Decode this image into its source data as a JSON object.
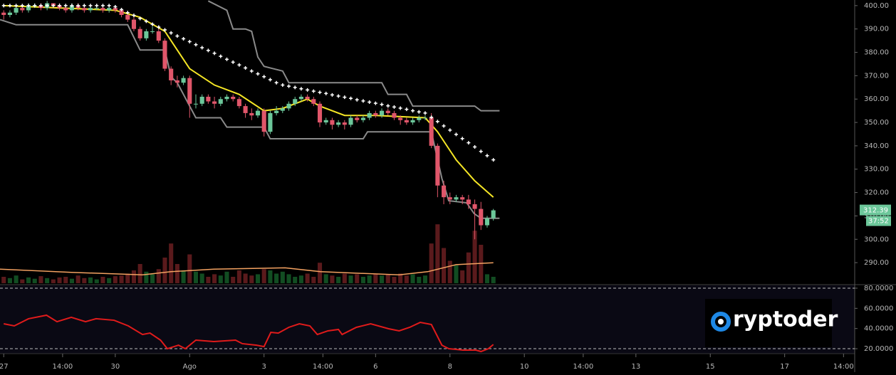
{
  "chart_data": [
    {
      "type": "candlestick",
      "x": [
        0,
        1,
        2,
        3,
        4,
        5,
        6,
        7,
        8,
        9,
        10,
        11,
        12,
        13,
        14,
        15,
        16,
        17,
        18,
        19,
        20,
        21,
        22,
        23,
        24,
        25,
        26,
        27,
        28,
        29,
        30,
        31,
        32,
        33,
        34,
        35,
        36,
        37,
        38,
        39,
        40,
        41,
        42,
        43,
        44,
        45,
        46,
        47,
        48,
        49,
        50,
        51,
        52,
        53,
        54,
        55,
        56,
        57,
        58,
        59,
        60,
        61,
        62,
        63,
        64,
        65,
        66,
        67,
        68,
        69,
        70,
        71,
        72,
        73,
        74,
        75,
        76,
        77,
        78,
        79
      ],
      "open": [
        397,
        396,
        397,
        399,
        398,
        400,
        400,
        399,
        401,
        400,
        399,
        398,
        400,
        399,
        398,
        399,
        399,
        398,
        399,
        398,
        396,
        394,
        390,
        386,
        389,
        389,
        385,
        373,
        368,
        367,
        369,
        358,
        358,
        361,
        359,
        358,
        360,
        361,
        360,
        357,
        354,
        353,
        355,
        346,
        354,
        355,
        356,
        358,
        360,
        361,
        360,
        358,
        350,
        351,
        349,
        350,
        349,
        352,
        351,
        352,
        354,
        353,
        355,
        354,
        352,
        351,
        350,
        351,
        352,
        352,
        340,
        323,
        318,
        317,
        318,
        317,
        315,
        313,
        306,
        309
      ],
      "high": [
        398,
        398,
        400,
        400,
        401,
        401,
        401,
        402,
        401,
        401,
        400,
        401,
        401,
        400,
        400,
        400,
        400,
        400,
        400,
        399,
        397,
        395,
        391,
        390,
        391,
        390,
        386,
        374,
        370,
        370,
        370,
        362,
        362,
        362,
        361,
        361,
        362,
        362,
        361,
        358,
        356,
        356,
        356,
        355,
        357,
        357,
        359,
        361,
        362,
        362,
        361,
        359,
        352,
        352,
        351,
        351,
        353,
        353,
        353,
        355,
        355,
        356,
        356,
        355,
        353,
        352,
        352,
        353,
        353,
        354,
        341,
        325,
        320,
        319,
        319,
        319,
        317,
        316,
        310,
        313
      ],
      "low": [
        394,
        395,
        396,
        397,
        397,
        399,
        398,
        398,
        399,
        398,
        397,
        397,
        398,
        397,
        397,
        398,
        397,
        397,
        397,
        395,
        393,
        389,
        385,
        385,
        388,
        384,
        372,
        366,
        365,
        366,
        352,
        356,
        357,
        358,
        356,
        357,
        359,
        359,
        356,
        352,
        351,
        352,
        344,
        345,
        353,
        354,
        355,
        357,
        359,
        359,
        357,
        348,
        349,
        347,
        348,
        347,
        348,
        350,
        350,
        351,
        352,
        352,
        353,
        351,
        349,
        349,
        349,
        350,
        351,
        339,
        318,
        315,
        315,
        316,
        315,
        313,
        300,
        304,
        305,
        308
      ],
      "close": [
        396,
        397,
        399,
        398,
        400,
        400,
        399,
        401,
        400,
        399,
        398,
        400,
        399,
        398,
        399,
        399,
        398,
        399,
        398,
        396,
        394,
        390,
        386,
        389,
        389,
        385,
        373,
        368,
        367,
        369,
        358,
        358,
        361,
        359,
        358,
        360,
        361,
        360,
        357,
        354,
        353,
        355,
        346,
        354,
        355,
        356,
        358,
        360,
        361,
        360,
        358,
        350,
        351,
        349,
        350,
        349,
        352,
        351,
        352,
        354,
        353,
        355,
        354,
        352,
        351,
        350,
        351,
        352,
        352,
        340,
        323,
        318,
        317,
        318,
        317,
        315,
        313,
        306,
        309,
        312.39
      ],
      "up_color": "#6cc79a",
      "down_color": "#e0566a",
      "xlim": [
        -0.6,
        137.3
      ],
      "ylim": [
        281.2,
        402.4
      ],
      "yticks": [
        {
          "value": 290,
          "label": "290.00"
        },
        {
          "value": 300,
          "label": "300.00"
        },
        {
          "value": 310,
          "label": "310.00"
        },
        {
          "value": 320,
          "label": "320.00"
        },
        {
          "value": 330,
          "label": "330.00"
        },
        {
          "value": 340,
          "label": "340.00"
        },
        {
          "value": 350,
          "label": "350.00"
        },
        {
          "value": 360,
          "label": "360.00"
        },
        {
          "value": 370,
          "label": "370.00"
        },
        {
          "value": 380,
          "label": "380.00"
        },
        {
          "value": 390,
          "label": "390.00"
        },
        {
          "value": 400,
          "label": "400.00"
        }
      ],
      "grid": false,
      "volume": {
        "lim": [
          0,
          100
        ],
        "up_color": "#124d22",
        "down_color": "#5a1a1c",
        "values": [
          10,
          8,
          12,
          6,
          9,
          7,
          11,
          8,
          6,
          9,
          10,
          7,
          12,
          8,
          9,
          6,
          10,
          8,
          11,
          12,
          15,
          20,
          30,
          18,
          14,
          22,
          40,
          62,
          30,
          20,
          45,
          18,
          15,
          10,
          14,
          12,
          18,
          10,
          20,
          15,
          12,
          14,
          22,
          20,
          15,
          18,
          14,
          10,
          12,
          15,
          10,
          32,
          14,
          12,
          10,
          15,
          12,
          14,
          10,
          12,
          15,
          12,
          14,
          10,
          15,
          12,
          14,
          10,
          12,
          62,
          92,
          55,
          35,
          28,
          20,
          48,
          82,
          60,
          14,
          10
        ],
        "ma": {
          "color": "#f4a261",
          "x": [
            -0.6,
            10.9,
            22.4,
            27,
            33.9,
            45.4,
            51.1,
            63.8,
            68.4,
            73,
            79
          ],
          "values": [
            22,
            17,
            13,
            18,
            22,
            24,
            18,
            13,
            18,
            29,
            32
          ]
        }
      },
      "overlays": [
        {
          "style": "line",
          "color": "#8a8a8a",
          "x": [
            33,
            36,
            37,
            39,
            40,
            41,
            42,
            45,
            46,
            61,
            62,
            65,
            66,
            76,
            77,
            80
          ],
          "values": [
            402,
            398,
            390,
            390,
            389,
            378,
            374,
            372,
            367,
            367,
            362,
            362,
            357,
            357,
            355,
            355
          ]
        },
        {
          "style": "line",
          "color": "#8a8a8a",
          "x": [
            -0.6,
            2,
            18,
            20,
            22,
            26,
            27,
            28,
            30,
            31,
            35,
            36,
            42,
            43,
            58,
            58.7,
            69,
            70.7,
            71.8,
            74.7,
            75.9,
            77,
            80
          ],
          "values": [
            394,
            391.8,
            391.8,
            391.8,
            381,
            381,
            369.5,
            367,
            357,
            352,
            352,
            348,
            348,
            343,
            343,
            346,
            346,
            326,
            316.5,
            315.6,
            311,
            309,
            309
          ]
        },
        {
          "style": "line",
          "color": "#f5e625",
          "x": [
            0,
            18,
            22,
            26,
            28,
            30,
            34,
            38,
            42,
            45,
            49,
            51,
            55,
            60,
            68,
            70,
            73,
            76,
            79
          ],
          "values": [
            400,
            398,
            395,
            389,
            381,
            373,
            366,
            362,
            355,
            356,
            360,
            357,
            353,
            353,
            352,
            346,
            334,
            325,
            318
          ]
        },
        {
          "style": "cross",
          "color": "#ffffff",
          "x": [
            0,
            1,
            2,
            3,
            4,
            5,
            6,
            7,
            8,
            9,
            10,
            11,
            12,
            13,
            14,
            15,
            16,
            17,
            18,
            19,
            20,
            21,
            22,
            23,
            24,
            25,
            26,
            27,
            28,
            29,
            30,
            31,
            32,
            33,
            34,
            35,
            36,
            37,
            38,
            39,
            40,
            41,
            42,
            43,
            44,
            45,
            46,
            47,
            48,
            49,
            50,
            51,
            52,
            53,
            54,
            55,
            56,
            57,
            58,
            59,
            60,
            61,
            62,
            63,
            64,
            65,
            66,
            67,
            68,
            69,
            70,
            71,
            72,
            73,
            74,
            75,
            76,
            77,
            78,
            79
          ],
          "values": [
            400,
            400,
            400,
            400,
            400,
            400,
            400,
            400,
            400,
            400,
            400,
            400,
            400,
            400,
            400,
            400,
            400,
            400,
            399.5,
            398.3,
            397,
            395.8,
            394.5,
            393.3,
            392,
            390.8,
            389.6,
            388.3,
            387,
            385.8,
            384.6,
            383.3,
            382,
            380.8,
            379.6,
            378.3,
            377,
            375.8,
            374.6,
            373.3,
            372,
            370.8,
            369.6,
            368.3,
            367,
            366,
            365.5,
            365,
            364.4,
            363.9,
            363.4,
            362.9,
            362.4,
            361.8,
            361.3,
            360.8,
            360.3,
            359.7,
            359.2,
            358.7,
            358.2,
            357.7,
            357.1,
            356.6,
            356.1,
            355.6,
            355,
            354.5,
            354,
            352.2,
            350.4,
            348.5,
            346.7,
            344.9,
            343.1,
            341.3,
            339.5,
            337.6,
            335.8,
            334
          ]
        }
      ],
      "last_price": {
        "value": 312.39,
        "label": "312.39",
        "color": "#6cc79a"
      },
      "countdown": "37:52"
    },
    {
      "type": "line",
      "x": [
        0,
        1.7,
        4,
        6.9,
        8.6,
        10.9,
        13.2,
        14.9,
        17.8,
        20.1,
        22.4,
        23.6,
        25.3,
        26.4,
        28.2,
        29.3,
        31,
        33.9,
        37.4,
        38.5,
        40.8,
        42,
        43.1,
        44.3,
        46,
        47.7,
        49.4,
        50.6,
        52.3,
        54,
        54.6,
        56.9,
        59.2,
        62.1,
        63.8,
        65.5,
        67.2,
        69,
        70.7,
        71.8,
        74.1,
        76.2,
        77,
        78.2,
        79
      ],
      "values": [
        44.7,
        42.6,
        49.7,
        53.2,
        46.8,
        51.1,
        46.8,
        49.7,
        48.2,
        42.6,
        34.1,
        35.5,
        28.5,
        20,
        23.5,
        20,
        28.5,
        27.1,
        28.5,
        25,
        23.5,
        22.1,
        36.2,
        35.5,
        41.2,
        44.7,
        42.6,
        34.1,
        37.7,
        39.1,
        34.1,
        41.2,
        44.7,
        39.8,
        37.7,
        41.2,
        46.1,
        44,
        23.5,
        20,
        18.6,
        18.6,
        17.2,
        20,
        24.2
      ],
      "color": "#e01b1b",
      "xlim": [
        -0.6,
        137.3
      ],
      "ylim": [
        15.1,
        83.5
      ],
      "yticks": [
        {
          "value": 20,
          "label": "20.0000"
        },
        {
          "value": 40,
          "label": "40.0000"
        },
        {
          "value": 60,
          "label": "60.0000"
        },
        {
          "value": 80,
          "label": "80.0000"
        }
      ],
      "levels": [
        80,
        20
      ],
      "xticks": [
        {
          "value": 0,
          "label": "27"
        },
        {
          "value": 9.5,
          "label": "14:00"
        },
        {
          "value": 18,
          "label": "30"
        },
        {
          "value": 30,
          "label": "Ago"
        },
        {
          "value": 42,
          "label": "3"
        },
        {
          "value": 51.5,
          "label": "14:00"
        },
        {
          "value": 60,
          "label": "6"
        },
        {
          "value": 72,
          "label": "8"
        },
        {
          "value": 84,
          "label": "10"
        },
        {
          "value": 93.5,
          "label": "14:00"
        },
        {
          "value": 102,
          "label": "13"
        },
        {
          "value": 114,
          "label": "15"
        },
        {
          "value": 126,
          "label": "17"
        },
        {
          "value": 135.5,
          "label": "14:00"
        }
      ],
      "watermark": "ryptoder"
    }
  ]
}
